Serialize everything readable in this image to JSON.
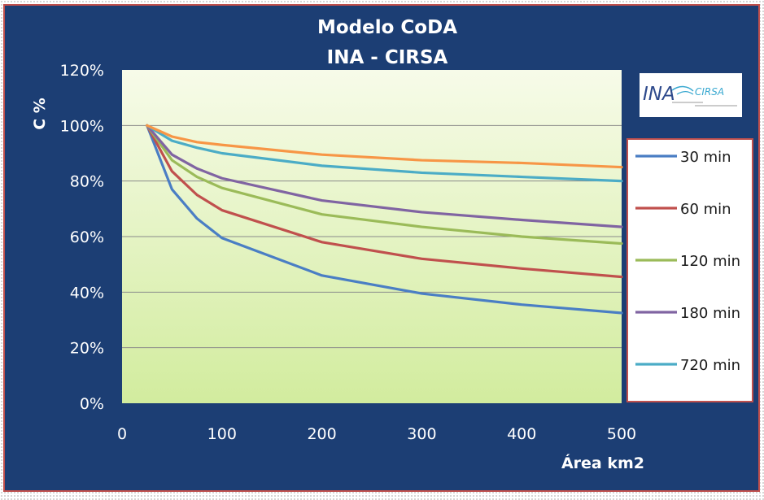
{
  "chart_data": {
    "type": "line",
    "title": "Modelo CoDA",
    "subtitle": "INA - CIRSA",
    "xlabel": "Área km2",
    "ylabel": "C %",
    "xlim": [
      0,
      500
    ],
    "ylim": [
      0,
      120
    ],
    "x_ticks": [
      0,
      100,
      200,
      300,
      400,
      500
    ],
    "y_ticks": [
      0,
      20,
      40,
      60,
      80,
      100,
      120
    ],
    "y_tick_suffix": "%",
    "grid": true,
    "legend_position": "right",
    "x": [
      25,
      50,
      75,
      100,
      200,
      300,
      400,
      500
    ],
    "series": [
      {
        "name": "30 min",
        "color": "#4a7ec4",
        "values": [
          100,
          77,
          66.5,
          59.5,
          46,
          39.5,
          35.5,
          32.5
        ]
      },
      {
        "name": "60 min",
        "color": "#c0504d",
        "values": [
          100,
          83.5,
          75,
          69.5,
          58,
          52,
          48.5,
          45.5
        ]
      },
      {
        "name": "120 min",
        "color": "#9bbb59",
        "values": [
          100,
          87.5,
          81.5,
          77.5,
          68,
          63.5,
          60,
          57.5
        ]
      },
      {
        "name": "180 min",
        "color": "#8064a2",
        "values": [
          100,
          89.5,
          84.5,
          81,
          73,
          68.8,
          66,
          63.5
        ]
      },
      {
        "name": "720 min",
        "color": "#4bacc6",
        "values": [
          100,
          94.5,
          92,
          90,
          85.5,
          83,
          81.5,
          80
        ]
      },
      {
        "name": "",
        "color": "#f79646",
        "values": [
          100,
          96,
          94,
          93,
          89.5,
          87.5,
          86.5,
          85
        ]
      }
    ],
    "logo_text": "INA",
    "logo_subtext": "CIRSA"
  }
}
